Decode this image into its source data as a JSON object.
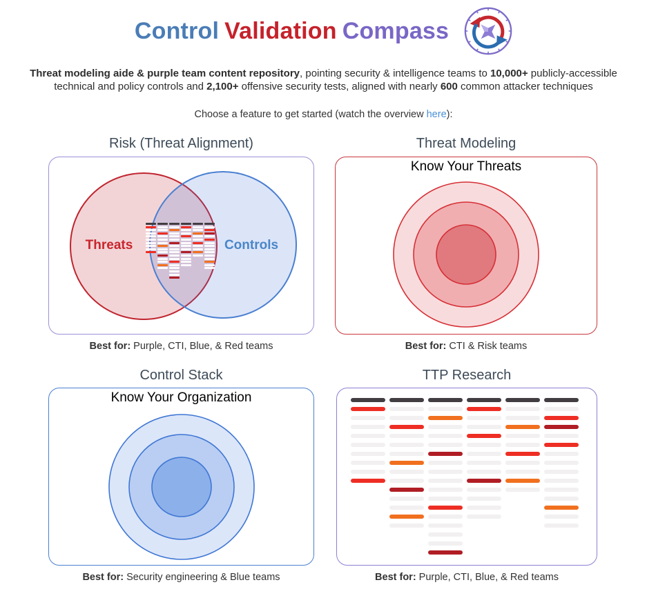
{
  "header": {
    "title": {
      "part1": "Control",
      "part2": "Validation",
      "part3": "Compass"
    },
    "title_colors": {
      "part1": "#4a7db6",
      "part2": "#c5222b",
      "part3": "#7a67c6"
    },
    "logo": {
      "ring_color": "#7d6cc8",
      "arrow_red": "#c5272e",
      "arrow_blue": "#2c6cb0",
      "needle_color": "#8d7cd4",
      "needle_highlight": "#b6abe8"
    }
  },
  "intro": {
    "line1": [
      "Threat modeling aide & purple team content repository",
      ", pointing security & intelligence teams to ",
      "10,000+",
      " publicly-accessible"
    ],
    "line2": [
      "technical and policy controls and ",
      "2,100+",
      " offensive security tests, aligned with nearly ",
      "600",
      " common attacker techniques"
    ]
  },
  "choose": {
    "prefix": "Choose a feature to get started (watch the overview ",
    "link": "here",
    "suffix": "):",
    "link_color": "#4a90d9"
  },
  "quadrants": {
    "risk": {
      "title": "Risk (Threat Alignment)",
      "caption_bold": "Best for:",
      "caption": " Purple, CTI, Blue, & Red teams",
      "venn": {
        "left_label": "Threats",
        "right_label": "Controls",
        "left_label_color": "#c9252c",
        "right_label_color": "#4a86c8",
        "left_fill": "rgba(198,60,72,0.22)",
        "right_fill": "rgba(62,112,215,0.18)",
        "left_stroke": "#c0242e",
        "right_stroke": "#4a7fd0"
      }
    },
    "threat_modeling": {
      "title": "Threat Modeling",
      "heading": "Know Your Threats",
      "caption_bold": "Best for:",
      "caption": " CTI & Risk teams",
      "ring_colors": [
        "#f8dcdd",
        "#f0aeb1",
        "#e07a7f"
      ],
      "ring_stroke": "#d62f35"
    },
    "control_stack": {
      "title": "Control Stack",
      "heading": "Know Your Organization",
      "caption_bold": "Best for:",
      "caption": " Security engineering & Blue teams",
      "ring_colors": [
        "#dbe6f9",
        "#b9cef2",
        "#8cb0ea"
      ],
      "ring_stroke": "#3f76d4"
    },
    "ttp_research": {
      "title": "TTP Research",
      "caption_bold": "Best for:",
      "caption": " Purple, CTI, Blue, & Red teams"
    }
  },
  "ttp_matrix": {
    "colors": {
      "dark": "#413d40",
      "light": "#f2f0f1",
      "red": "#ee2e24",
      "orange": "#f1701f",
      "crimson": "#b01d24"
    },
    "mini_colors": {
      "dark": "#413d40",
      "light": "rgba(255,255,255,0.92)",
      "red": "#ee2e24",
      "orange": "#f1701f",
      "crimson": "#b01d24"
    },
    "columns": [
      [
        "dark",
        "red",
        "light",
        "light",
        "light",
        "light",
        "light",
        "light",
        "light",
        "red"
      ],
      [
        "dark",
        "light",
        "light",
        "red",
        "light",
        "light",
        "light",
        "orange",
        "light",
        "light",
        "crimson",
        "light",
        "light",
        "orange",
        "light"
      ],
      [
        "dark",
        "light",
        "orange",
        "light",
        "light",
        "light",
        "crimson",
        "light",
        "light",
        "light",
        "light",
        "light",
        "red",
        "light",
        "light",
        "light",
        "light",
        "crimson"
      ],
      [
        "dark",
        "red",
        "light",
        "light",
        "red",
        "light",
        "light",
        "light",
        "light",
        "crimson",
        "light",
        "light",
        "light",
        "light"
      ],
      [
        "dark",
        "light",
        "light",
        "orange",
        "light",
        "light",
        "red",
        "light",
        "light",
        "orange",
        "light"
      ],
      [
        "dark",
        "light",
        "red",
        "crimson",
        "light",
        "red",
        "light",
        "light",
        "light",
        "light",
        "light",
        "light",
        "orange",
        "light",
        "light"
      ]
    ]
  }
}
